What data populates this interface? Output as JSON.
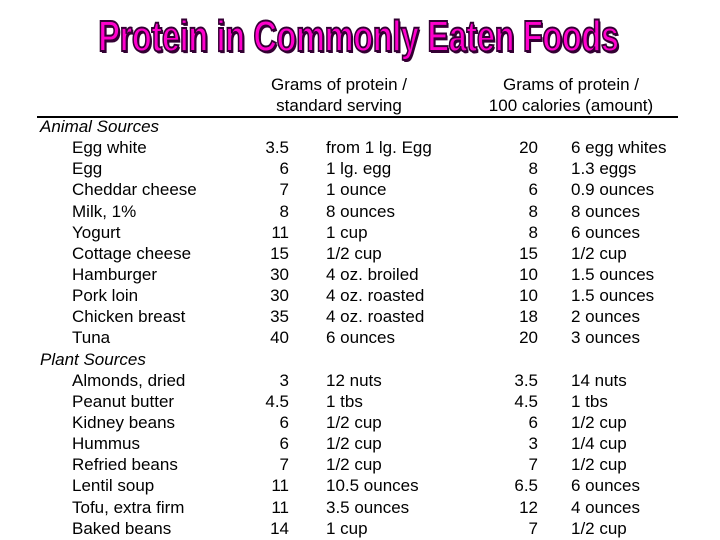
{
  "title": {
    "text": "Protein in Commonly Eaten Foods",
    "color": "#ff00cc",
    "outline_color": "#330033"
  },
  "columns": {
    "per_serving": [
      "Grams of protein /",
      "standard serving"
    ],
    "per_100_calories": [
      "Grams of protein /",
      "100 calories (amount)"
    ]
  },
  "sections": [
    {
      "label": "Animal Sources",
      "rows": [
        {
          "food": "Egg white",
          "grams_serving": "3.5",
          "serving": "from 1 lg. Egg",
          "grams_100cal": "20",
          "amount_100cal": "6 egg whites"
        },
        {
          "food": "Egg",
          "grams_serving": "6",
          "serving": "1 lg. egg",
          "grams_100cal": "8",
          "amount_100cal": "1.3 eggs"
        },
        {
          "food": "Cheddar cheese",
          "grams_serving": "7",
          "serving": "1 ounce",
          "grams_100cal": "6",
          "amount_100cal": "0.9 ounces"
        },
        {
          "food": "Milk, 1%",
          "grams_serving": "8",
          "serving": "8 ounces",
          "grams_100cal": "8",
          "amount_100cal": "8 ounces"
        },
        {
          "food": "Yogurt",
          "grams_serving": "11",
          "serving": "1 cup",
          "grams_100cal": "8",
          "amount_100cal": "6 ounces"
        },
        {
          "food": "Cottage cheese",
          "grams_serving": "15",
          "serving": "1/2 cup",
          "grams_100cal": "15",
          "amount_100cal": "1/2 cup"
        },
        {
          "food": "Hamburger",
          "grams_serving": "30",
          "serving": "4 oz. broiled",
          "grams_100cal": "10",
          "amount_100cal": "1.5 ounces"
        },
        {
          "food": "Pork loin",
          "grams_serving": "30",
          "serving": "4 oz. roasted",
          "grams_100cal": "10",
          "amount_100cal": "1.5 ounces"
        },
        {
          "food": "Chicken breast",
          "grams_serving": "35",
          "serving": "4 oz. roasted",
          "grams_100cal": "18",
          "amount_100cal": "2 ounces"
        },
        {
          "food": "Tuna",
          "grams_serving": "40",
          "serving": "6 ounces",
          "grams_100cal": "20",
          "amount_100cal": "3 ounces"
        }
      ]
    },
    {
      "label": "Plant Sources",
      "rows": [
        {
          "food": "Almonds, dried",
          "grams_serving": "3",
          "serving": "12 nuts",
          "grams_100cal": "3.5",
          "amount_100cal": "14 nuts"
        },
        {
          "food": "Peanut butter",
          "grams_serving": "4.5",
          "serving": "1 tbs",
          "grams_100cal": "4.5",
          "amount_100cal": "1 tbs"
        },
        {
          "food": "Kidney beans",
          "grams_serving": "6",
          "serving": "1/2 cup",
          "grams_100cal": "6",
          "amount_100cal": "1/2 cup"
        },
        {
          "food": "Hummus",
          "grams_serving": "6",
          "serving": "1/2 cup",
          "grams_100cal": "3",
          "amount_100cal": "1/4 cup"
        },
        {
          "food": "Refried beans",
          "grams_serving": "7",
          "serving": "1/2 cup",
          "grams_100cal": "7",
          "amount_100cal": "1/2 cup"
        },
        {
          "food": "Lentil soup",
          "grams_serving": "11",
          "serving": "10.5 ounces",
          "grams_100cal": "6.5",
          "amount_100cal": "6 ounces"
        },
        {
          "food": "Tofu, extra firm",
          "grams_serving": "11",
          "serving": "3.5 ounces",
          "grams_100cal": "12",
          "amount_100cal": "4 ounces"
        },
        {
          "food": "Baked beans",
          "grams_serving": "14",
          "serving": "1 cup",
          "grams_100cal": "7",
          "amount_100cal": "1/2 cup"
        }
      ]
    }
  ]
}
